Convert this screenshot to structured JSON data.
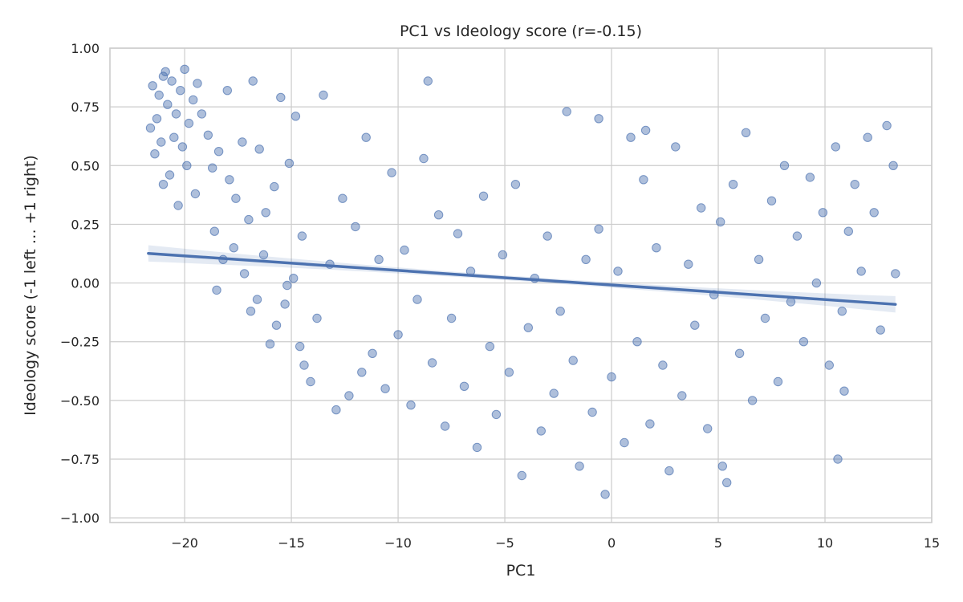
{
  "chart_data": {
    "type": "scatter",
    "title": "PC1 vs Ideology score (r=-0.15)",
    "xlabel": "PC1",
    "ylabel": "Ideology score (-1 left … +1 right)",
    "xlim": [
      -23.5,
      15
    ],
    "ylim": [
      -1.02,
      1.0
    ],
    "xticks": [
      -20,
      -15,
      -10,
      -5,
      0,
      5,
      10,
      15
    ],
    "yticks": [
      -1.0,
      -0.75,
      -0.5,
      -0.25,
      0.0,
      0.25,
      0.5,
      0.75,
      1.0
    ],
    "xtick_labels": [
      "−20",
      "−15",
      "−10",
      "−5",
      "0",
      "5",
      "10",
      "15"
    ],
    "ytick_labels": [
      "−1.00",
      "−0.75",
      "−0.50",
      "−0.25",
      "0.00",
      "0.25",
      "0.50",
      "0.75",
      "1.00"
    ],
    "grid": true,
    "correlation_r": -0.15,
    "point_color": "#4c72b0",
    "line_color": "#4c72b0",
    "regression": {
      "slope": -0.0062,
      "intercept": -0.0085,
      "x_range": [
        -21.7,
        13.3
      ],
      "ci_width_ends": 0.035,
      "ci_width_center": 0.01
    },
    "points": [
      [
        -21.5,
        0.84
      ],
      [
        -21.2,
        0.8
      ],
      [
        -21.0,
        0.88
      ],
      [
        -20.8,
        0.76
      ],
      [
        -20.6,
        0.86
      ],
      [
        -20.4,
        0.72
      ],
      [
        -21.3,
        0.7
      ],
      [
        -20.9,
        0.9
      ],
      [
        -20.2,
        0.82
      ],
      [
        -21.6,
        0.66
      ],
      [
        -20.0,
        0.91
      ],
      [
        -19.6,
        0.78
      ],
      [
        -21.1,
        0.6
      ],
      [
        -20.5,
        0.62
      ],
      [
        -21.4,
        0.55
      ],
      [
        -20.7,
        0.46
      ],
      [
        -20.3,
        0.33
      ],
      [
        -21.0,
        0.42
      ],
      [
        -20.1,
        0.58
      ],
      [
        -19.8,
        0.68
      ],
      [
        -19.4,
        0.85
      ],
      [
        -19.2,
        0.72
      ],
      [
        -19.9,
        0.5
      ],
      [
        -19.5,
        0.38
      ],
      [
        -18.9,
        0.63
      ],
      [
        -18.7,
        0.49
      ],
      [
        -18.4,
        0.56
      ],
      [
        -18.0,
        0.82
      ],
      [
        -17.9,
        0.44
      ],
      [
        -17.6,
        0.36
      ],
      [
        -17.3,
        0.6
      ],
      [
        -17.0,
        0.27
      ],
      [
        -16.8,
        0.86
      ],
      [
        -16.5,
        0.57
      ],
      [
        -16.2,
        0.3
      ],
      [
        -15.8,
        0.41
      ],
      [
        -15.5,
        0.79
      ],
      [
        -15.1,
        0.51
      ],
      [
        -14.8,
        0.71
      ],
      [
        -14.5,
        0.2
      ],
      [
        -18.6,
        0.22
      ],
      [
        -18.2,
        0.1
      ],
      [
        -17.7,
        0.15
      ],
      [
        -17.2,
        0.04
      ],
      [
        -16.6,
        -0.07
      ],
      [
        -16.3,
        0.12
      ],
      [
        -15.7,
        -0.18
      ],
      [
        -15.3,
        -0.09
      ],
      [
        -14.9,
        0.02
      ],
      [
        -14.6,
        -0.27
      ],
      [
        -18.5,
        -0.03
      ],
      [
        -16.9,
        -0.12
      ],
      [
        -16.0,
        -0.26
      ],
      [
        -15.2,
        -0.01
      ],
      [
        -14.4,
        -0.35
      ],
      [
        -14.1,
        -0.42
      ],
      [
        -13.8,
        -0.15
      ],
      [
        -13.5,
        0.8
      ],
      [
        -13.2,
        0.08
      ],
      [
        -12.9,
        -0.54
      ],
      [
        -12.6,
        0.36
      ],
      [
        -12.3,
        -0.48
      ],
      [
        -12.0,
        0.24
      ],
      [
        -11.7,
        -0.38
      ],
      [
        -11.5,
        0.62
      ],
      [
        -11.2,
        -0.3
      ],
      [
        -10.9,
        0.1
      ],
      [
        -10.6,
        -0.45
      ],
      [
        -10.3,
        0.47
      ],
      [
        -10.0,
        -0.22
      ],
      [
        -9.7,
        0.14
      ],
      [
        -9.4,
        -0.52
      ],
      [
        -9.1,
        -0.07
      ],
      [
        -8.8,
        0.53
      ],
      [
        -8.6,
        0.86
      ],
      [
        -8.4,
        -0.34
      ],
      [
        -8.1,
        0.29
      ],
      [
        -7.8,
        -0.61
      ],
      [
        -7.5,
        -0.15
      ],
      [
        -7.2,
        0.21
      ],
      [
        -6.9,
        -0.44
      ],
      [
        -6.6,
        0.05
      ],
      [
        -6.3,
        -0.7
      ],
      [
        -6.0,
        0.37
      ],
      [
        -5.7,
        -0.27
      ],
      [
        -5.4,
        -0.56
      ],
      [
        -5.1,
        0.12
      ],
      [
        -4.8,
        -0.38
      ],
      [
        -4.5,
        0.42
      ],
      [
        -4.2,
        -0.82
      ],
      [
        -3.9,
        -0.19
      ],
      [
        -3.6,
        0.02
      ],
      [
        -3.3,
        -0.63
      ],
      [
        -3.0,
        0.2
      ],
      [
        -2.7,
        -0.47
      ],
      [
        -2.4,
        -0.12
      ],
      [
        -2.1,
        0.73
      ],
      [
        -1.8,
        -0.33
      ],
      [
        -1.5,
        -0.78
      ],
      [
        -1.2,
        0.1
      ],
      [
        -0.9,
        -0.55
      ],
      [
        -0.6,
        0.23
      ],
      [
        -0.3,
        -0.9
      ],
      [
        0.0,
        -0.4
      ],
      [
        0.3,
        0.05
      ],
      [
        0.6,
        -0.68
      ],
      [
        0.9,
        0.62
      ],
      [
        1.2,
        -0.25
      ],
      [
        1.5,
        0.44
      ],
      [
        1.8,
        -0.6
      ],
      [
        2.1,
        0.15
      ],
      [
        2.4,
        -0.35
      ],
      [
        2.7,
        -0.8
      ],
      [
        3.0,
        0.58
      ],
      [
        3.3,
        -0.48
      ],
      [
        3.6,
        0.08
      ],
      [
        3.9,
        -0.18
      ],
      [
        4.2,
        0.32
      ],
      [
        4.5,
        -0.62
      ],
      [
        4.8,
        -0.05
      ],
      [
        5.1,
        0.26
      ],
      [
        5.4,
        -0.85
      ],
      [
        5.7,
        0.42
      ],
      [
        6.0,
        -0.3
      ],
      [
        6.3,
        0.64
      ],
      [
        6.6,
        -0.5
      ],
      [
        6.9,
        0.1
      ],
      [
        7.2,
        -0.15
      ],
      [
        7.5,
        0.35
      ],
      [
        7.8,
        -0.42
      ],
      [
        8.1,
        0.5
      ],
      [
        8.4,
        -0.08
      ],
      [
        8.7,
        0.2
      ],
      [
        9.0,
        -0.25
      ],
      [
        9.3,
        0.45
      ],
      [
        9.6,
        0.0
      ],
      [
        9.9,
        0.3
      ],
      [
        10.2,
        -0.35
      ],
      [
        10.5,
        0.58
      ],
      [
        10.8,
        -0.12
      ],
      [
        11.1,
        0.22
      ],
      [
        11.4,
        0.42
      ],
      [
        11.7,
        0.05
      ],
      [
        12.0,
        0.62
      ],
      [
        12.3,
        0.3
      ],
      [
        12.6,
        -0.2
      ],
      [
        12.9,
        0.67
      ],
      [
        13.2,
        0.5
      ],
      [
        10.6,
        -0.75
      ],
      [
        10.9,
        -0.46
      ],
      [
        13.3,
        0.04
      ],
      [
        5.2,
        -0.78
      ],
      [
        -0.6,
        0.7
      ],
      [
        1.6,
        0.65
      ]
    ]
  }
}
